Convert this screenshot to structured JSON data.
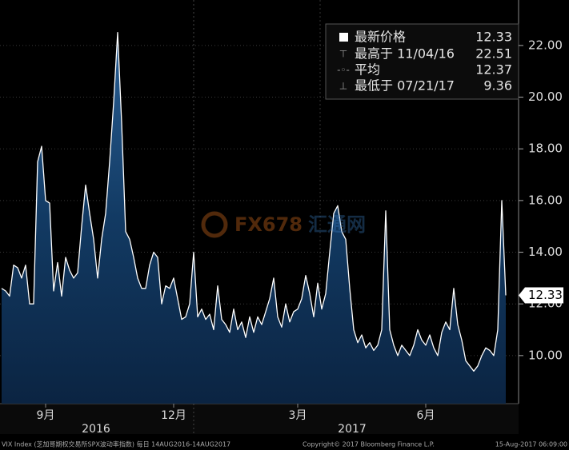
{
  "chart_data": {
    "type": "area-line",
    "categories": [
      null,
      null,
      null,
      null,
      null,
      null,
      null,
      null,
      null,
      null,
      null,
      "9月",
      null,
      null,
      null,
      null,
      null,
      null,
      null,
      null,
      null,
      null,
      null,
      null,
      null,
      null,
      null,
      null,
      null,
      null,
      null,
      null,
      null,
      null,
      null,
      null,
      null,
      null,
      null,
      null,
      null,
      null,
      null,
      "12月",
      null,
      null,
      null,
      null,
      null,
      null,
      null,
      null,
      null,
      null,
      null,
      null,
      null,
      null,
      null,
      null,
      null,
      null,
      null,
      null,
      null,
      null,
      null,
      null,
      null,
      null,
      null,
      null,
      null,
      null,
      "3月",
      null,
      null,
      null,
      null,
      null,
      null,
      null,
      null,
      null,
      null,
      null,
      null,
      null,
      null,
      null,
      null,
      null,
      null,
      null,
      null,
      null,
      null,
      null,
      null,
      null,
      null,
      null,
      null,
      null,
      null,
      null,
      "6月",
      null,
      null,
      null,
      null,
      null,
      null,
      null,
      null,
      null,
      null,
      null,
      null,
      null,
      null,
      null,
      null,
      null,
      null,
      null,
      null
    ],
    "values": [
      12.6,
      12.5,
      12.3,
      13.5,
      13.4,
      13.0,
      13.5,
      12.0,
      12.0,
      17.5,
      18.1,
      16.0,
      15.9,
      12.5,
      13.6,
      12.3,
      13.8,
      13.3,
      13.0,
      13.2,
      15.0,
      16.6,
      15.5,
      14.5,
      13.0,
      14.5,
      15.5,
      17.5,
      19.8,
      22.5,
      19.0,
      14.8,
      14.5,
      13.8,
      13.0,
      12.6,
      12.6,
      13.5,
      14.0,
      13.8,
      12.0,
      12.7,
      12.6,
      13.0,
      12.2,
      11.4,
      11.5,
      12.0,
      14.0,
      11.5,
      11.8,
      11.4,
      11.6,
      11.0,
      12.7,
      11.4,
      11.2,
      10.9,
      11.8,
      11.0,
      11.3,
      10.7,
      11.5,
      10.9,
      11.5,
      11.2,
      11.7,
      12.2,
      13.0,
      11.5,
      11.1,
      12.0,
      11.3,
      11.7,
      11.8,
      12.2,
      13.1,
      12.4,
      11.5,
      12.8,
      11.8,
      12.4,
      14.0,
      15.5,
      15.8,
      14.8,
      14.5,
      12.6,
      11.0,
      10.5,
      10.8,
      10.3,
      10.5,
      10.2,
      10.4,
      11.0,
      15.6,
      11.0,
      10.4,
      10.0,
      10.4,
      10.2,
      10.0,
      10.4,
      11.0,
      10.6,
      10.4,
      10.8,
      10.3,
      10.0,
      10.9,
      11.3,
      11.0,
      12.6,
      11.2,
      10.6,
      9.8,
      9.6,
      9.4,
      9.6,
      10.0,
      10.3,
      10.2,
      10.0,
      11.0,
      16.0,
      12.33
    ],
    "color": "#ffffff",
    "years": [
      "2016",
      "2017"
    ],
    "ylim": [
      8.14,
      23.76
    ],
    "yticks": [
      {
        "value": 10,
        "label": "10.00"
      },
      {
        "value": 12,
        "label": "12.00"
      },
      {
        "value": 14,
        "label": "14.00"
      },
      {
        "value": 16,
        "label": "16.00"
      },
      {
        "value": 18,
        "label": "18.00"
      },
      {
        "value": 20,
        "label": "20.00"
      },
      {
        "value": 22,
        "label": "22.00"
      }
    ],
    "grid": true,
    "legend_rows": [
      {
        "label": "最新价格",
        "value": "12.33"
      },
      {
        "label": "最高于 11/04/16",
        "value": "22.51"
      },
      {
        "label": "平均",
        "value": "12.37"
      },
      {
        "label": "最低于 07/21/17",
        "value": "9.36"
      }
    ],
    "watermark": [
      "FX678",
      "汇通网"
    ],
    "footer": [
      "VIX Index (芝加哥期权交易所SPX波动率指数) 每日 14AUG2016-14AUG2017",
      "Copyright© 2017 Bloomberg Finance L.P.",
      "15-Aug-2017 06:09:00"
    ]
  }
}
